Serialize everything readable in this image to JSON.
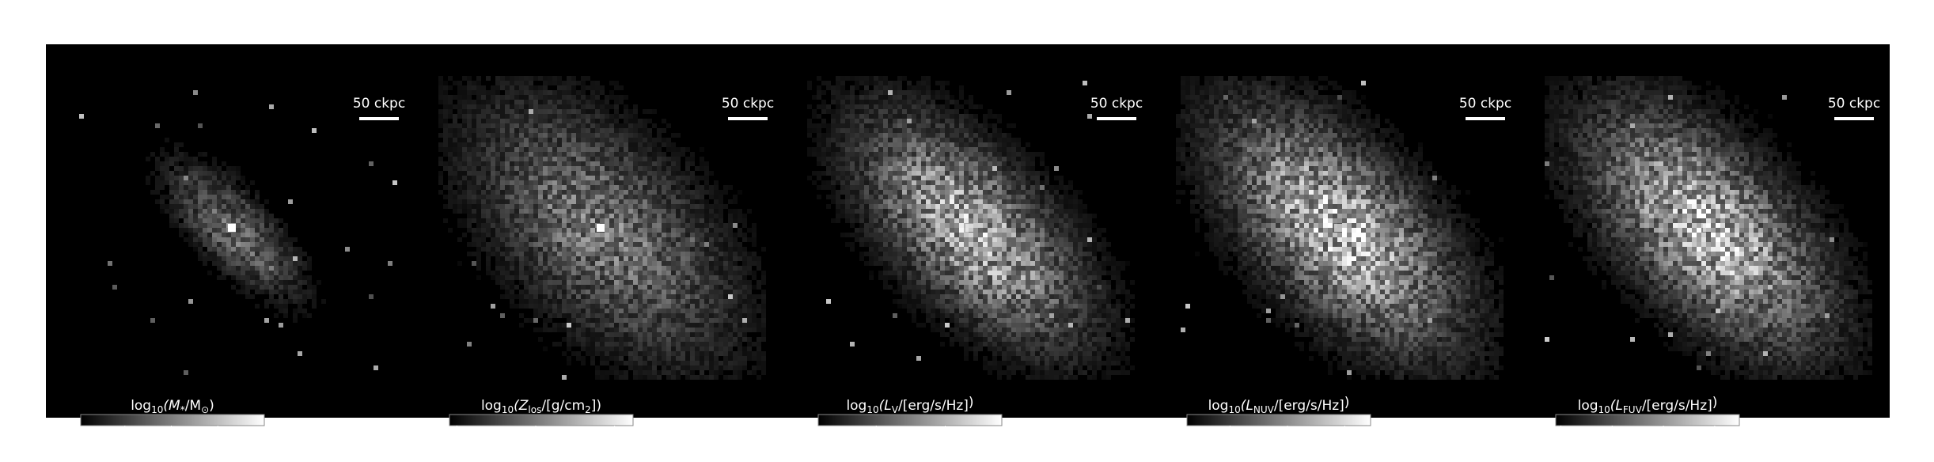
{
  "panels": [
    {
      "label": {
        "pre": "log",
        "sub1": "10",
        "body": "(M",
        "sub2": "*",
        "mid": "/M",
        "sub3": "⊙",
        "post": ")"
      },
      "scale_bar": "50 ckpc",
      "cbar_lim": [
        6.05,
        10.0
      ],
      "ticks": [
        7,
        8,
        9
      ]
    },
    {
      "label": {
        "pre": "log",
        "sub1": "10",
        "body": "(Z",
        "sub2": "los",
        "mid": "/[g/cm",
        "sub3": "2",
        "post": "])"
      },
      "scale_bar": "50 ckpc",
      "cbar_lim": [
        -10.47,
        1.17
      ],
      "ticks": [
        {
          "value": -10,
          "label": "−10"
        },
        {
          "value": -5,
          "label": "−5"
        },
        0
      ]
    },
    {
      "label": {
        "pre": "log",
        "sub1": "10",
        "body": "(L",
        "sub2": "V",
        "mid": "/[erg/s/Hz]",
        "sub3": "",
        "post": ")"
      },
      "scale_bar": "50 ckpc",
      "cbar_lim": [
        25.16,
        27.82
      ],
      "ticks": [
        26,
        27
      ]
    },
    {
      "label": {
        "pre": "log",
        "sub1": "10",
        "body": "(L",
        "sub2": "NUV",
        "mid": "/[erg/s/Hz]",
        "sub3": "",
        "post": ")"
      },
      "scale_bar": "50 ckpc",
      "cbar_lim": [
        24.25,
        27.45
      ],
      "ticks": [
        25,
        26,
        27
      ]
    },
    {
      "label": {
        "pre": "log",
        "sub1": "10",
        "body": "(L",
        "sub2": "FUV",
        "mid": "/[erg/s/Hz]",
        "sub3": "",
        "post": ")"
      },
      "scale_bar": "50 ckpc",
      "cbar_lim": [
        23.9,
        27.48
      ],
      "ticks": [
        24,
        25,
        26,
        27
      ]
    }
  ]
}
